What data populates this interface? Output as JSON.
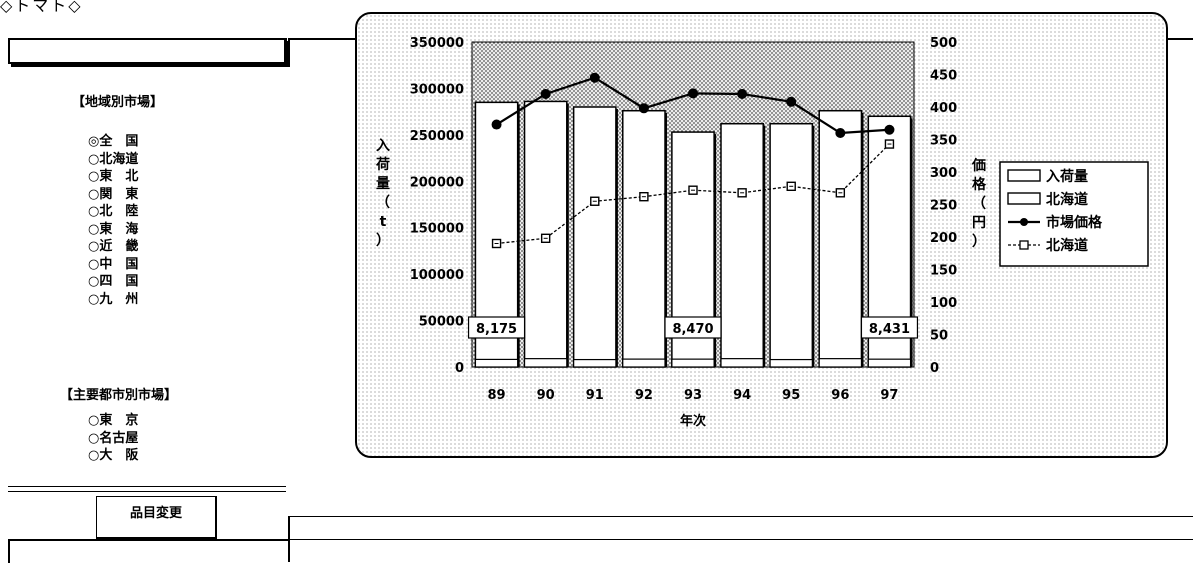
{
  "header": {
    "title": "◇トマト◇"
  },
  "sidebar": {
    "regional_heading": "【地域別市場】",
    "regional_items": [
      "◎全　国",
      "○北海道",
      "○東　北",
      "○関　東",
      "○北　陸",
      "○東　海",
      "○近　畿",
      "○中　国",
      "○四　国",
      "○九　州"
    ],
    "city_heading": "【主要都市別市場】",
    "city_items": [
      "○東　京",
      "○名古屋",
      "○大　阪"
    ],
    "change_button": "品目変更"
  },
  "chart_data": {
    "type": "bar",
    "categories": [
      "89",
      "90",
      "91",
      "92",
      "93",
      "94",
      "95",
      "96",
      "97"
    ],
    "xlabel": "年次",
    "ylabel": "入荷量（t）",
    "y2label": "価格（円）",
    "ylim": [
      0,
      350000
    ],
    "y2lim": [
      0,
      500
    ],
    "yticks": [
      "350000",
      "300000",
      "250000",
      "200000",
      "150000",
      "100000",
      "50000",
      "0"
    ],
    "y2ticks": [
      "500",
      "450",
      "400",
      "350",
      "300",
      "250",
      "200",
      "150",
      "100",
      "50",
      "0"
    ],
    "series": [
      {
        "name": "入荷量",
        "kind": "bar",
        "axis": "left",
        "values": [
          285000,
          286000,
          280000,
          276000,
          253000,
          262000,
          262000,
          276000,
          270000
        ]
      },
      {
        "name": "北海道",
        "kind": "bar",
        "axis": "left",
        "values": [
          8175,
          9000,
          8000,
          8500,
          8470,
          9000,
          8000,
          9000,
          8431
        ]
      },
      {
        "name": "市場価格",
        "kind": "line",
        "axis": "right",
        "values": [
          373,
          420,
          445,
          398,
          421,
          420,
          408,
          360,
          365
        ]
      },
      {
        "name": "北海道",
        "kind": "line",
        "axis": "right",
        "values": [
          190,
          198,
          255,
          262,
          272,
          268,
          278,
          268,
          343
        ]
      }
    ],
    "data_labels": [
      {
        "index": 0,
        "text": "8,175"
      },
      {
        "index": 4,
        "text": "8,470"
      },
      {
        "index": 8,
        "text": "8,431"
      }
    ],
    "legend": {
      "position": "right",
      "items": [
        "入荷量",
        "北海道",
        "市場価格",
        "北海道"
      ]
    }
  }
}
